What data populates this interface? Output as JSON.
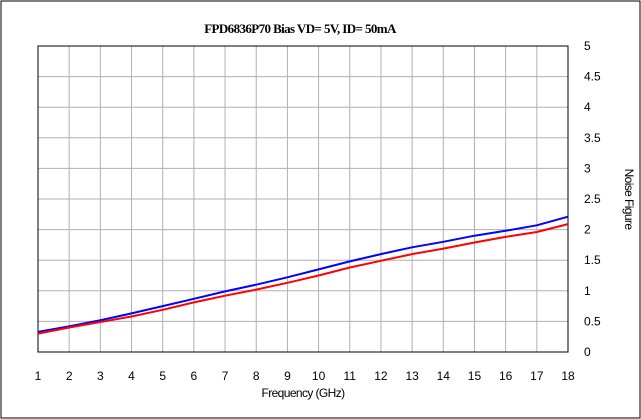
{
  "chart_data": {
    "type": "line",
    "title": "FPD6836P70 Bias VD= 5V, ID= 50mA",
    "xlabel": "Frequency (GHz)",
    "ylabel": "Noise Figure",
    "xlim": [
      1,
      18
    ],
    "ylim": [
      0,
      5
    ],
    "x_ticks": [
      "1",
      "2",
      "3",
      "4",
      "5",
      "6",
      "7",
      "8",
      "9",
      "10",
      "11",
      "12",
      "13",
      "14",
      "15",
      "16",
      "17",
      "18"
    ],
    "y_ticks": [
      "0",
      "0.5",
      "1",
      "1.5",
      "2",
      "2.5",
      "3",
      "3.5",
      "4",
      "4.5",
      "5"
    ],
    "y_tick_values": [
      0,
      0.5,
      1,
      1.5,
      2,
      2.5,
      3,
      3.5,
      4,
      4.5,
      5
    ],
    "grid": true,
    "y_axis_side": "right",
    "x": [
      1,
      2,
      3,
      4,
      5,
      6,
      7,
      8,
      9,
      10,
      11,
      12,
      13,
      14,
      15,
      16,
      17,
      18
    ],
    "series": [
      {
        "color": "#0000ff",
        "values": [
          0.33,
          0.42,
          0.52,
          0.63,
          0.75,
          0.87,
          0.99,
          1.1,
          1.22,
          1.35,
          1.48,
          1.6,
          1.71,
          1.8,
          1.9,
          1.98,
          2.07,
          2.21
        ]
      },
      {
        "color": "#ff0000",
        "values": [
          0.3,
          0.4,
          0.49,
          0.58,
          0.69,
          0.81,
          0.92,
          1.02,
          1.13,
          1.25,
          1.38,
          1.49,
          1.6,
          1.69,
          1.79,
          1.88,
          1.96,
          2.09
        ]
      }
    ]
  }
}
